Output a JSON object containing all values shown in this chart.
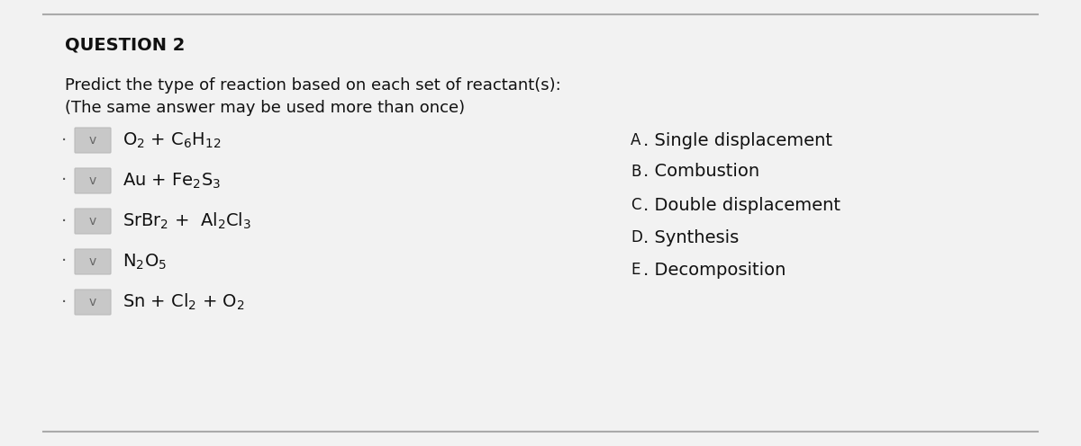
{
  "bg_color": "#d8d8d8",
  "content_bg": "#f2f2f2",
  "question_title": "QUESTION 2",
  "instructions_line1": "Predict the type of reaction based on each set of reactant(s):",
  "instructions_line2": "(The same answer may be used more than once)",
  "reactants": [
    {
      "label": "O$_2$ + C$_6$H$_{12}$"
    },
    {
      "label": "Au + Fe$_2$S$_3$"
    },
    {
      "label": "SrBr$_2$ +  Al$_2$Cl$_3$"
    },
    {
      "label": "N$_2$O$_5$"
    },
    {
      "label": "Sn + Cl$_2$ + O$_2$"
    }
  ],
  "answers": [
    {
      "label": "A",
      "text": "Single displacement"
    },
    {
      "label": "B",
      "text": "Combustion"
    },
    {
      "label": "C",
      "text": "Double displacement"
    },
    {
      "label": "D",
      "text": "Synthesis"
    },
    {
      "label": "E",
      "text": "Decomposition"
    }
  ],
  "dropdown_box_color": "#c8c8c8",
  "top_line_color": "#aaaaaa",
  "bottom_line_color": "#aaaaaa",
  "title_fontsize": 14,
  "body_fontsize": 13,
  "reactant_fontsize": 14,
  "answer_fontsize": 14,
  "text_color": "#111111",
  "dash_color": "#555555",
  "check_color": "#666666"
}
